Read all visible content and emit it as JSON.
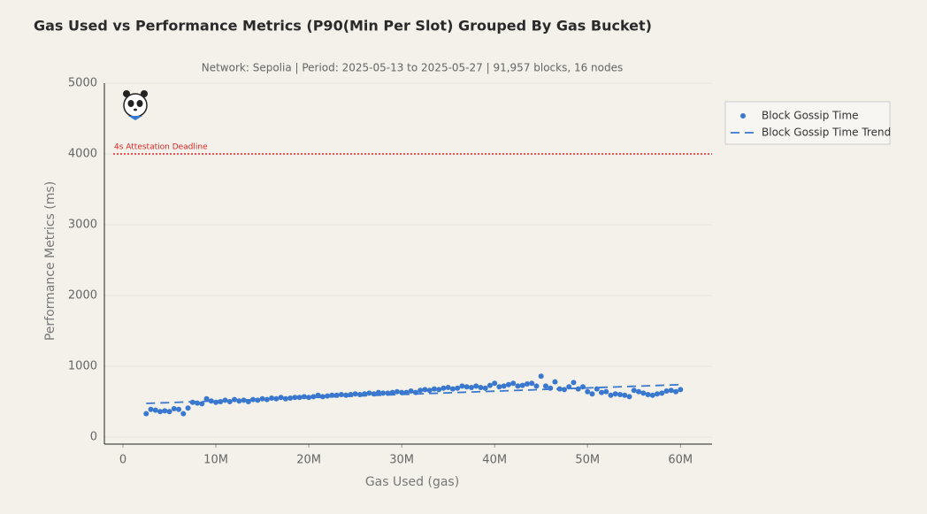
{
  "chart_data": {
    "type": "scatter",
    "title": "Gas Used vs Performance Metrics (P90(Min Per Slot) Grouped By Gas Bucket)",
    "subtitle": "Network: Sepolia | Period: 2025-05-13 to 2025-05-27 | 91,957 blocks, 16 nodes",
    "xlabel": "Gas Used (gas)",
    "ylabel": "Performance Metrics (ms)",
    "xlim": [
      -2000000,
      63400000
    ],
    "ylim": [
      -100,
      5000
    ],
    "xticks": [
      0,
      {
        "value": 10000000,
        "label": "10M"
      },
      {
        "value": 20000000,
        "label": "20M"
      },
      {
        "value": 30000000,
        "label": "30M"
      },
      {
        "value": 40000000,
        "label": "40M"
      },
      {
        "value": 50000000,
        "label": "50M"
      },
      {
        "value": 60000000,
        "label": "60M"
      }
    ],
    "yticks": [
      0,
      1000,
      2000,
      3000,
      4000,
      5000
    ],
    "grid": true,
    "legend": "outside right",
    "reference_lines": [
      {
        "value": 4000,
        "label": "4s Attestation Deadline",
        "color": "#e02424"
      }
    ],
    "series": [
      {
        "name": "Block Gossip Time",
        "type": "scatter",
        "color": "#3a78d0",
        "x": [
          2500000,
          3000000,
          3500000,
          4000000,
          4500000,
          5000000,
          5500000,
          6000000,
          6500000,
          7000000,
          7500000,
          8000000,
          8500000,
          9000000,
          9500000,
          10000000,
          10500000,
          11000000,
          11500000,
          12000000,
          12500000,
          13000000,
          13500000,
          14000000,
          14500000,
          15000000,
          15500000,
          16000000,
          16500000,
          17000000,
          17500000,
          18000000,
          18500000,
          19000000,
          19500000,
          20000000,
          20500000,
          21000000,
          21500000,
          22000000,
          22500000,
          23000000,
          23500000,
          24000000,
          24500000,
          25000000,
          25500000,
          26000000,
          26500000,
          27000000,
          27500000,
          28000000,
          28500000,
          29000000,
          29500000,
          30000000,
          30500000,
          31000000,
          31500000,
          32000000,
          32500000,
          33000000,
          33500000,
          34000000,
          34500000,
          35000000,
          35500000,
          36000000,
          36500000,
          37000000,
          37500000,
          38000000,
          38500000,
          39000000,
          39500000,
          40000000,
          40500000,
          41000000,
          41500000,
          42000000,
          42500000,
          43000000,
          43500000,
          44000000,
          44500000,
          45000000,
          45500000,
          46000000,
          46500000,
          47000000,
          47500000,
          48000000,
          48500000,
          49000000,
          49500000,
          50000000,
          50500000,
          51000000,
          51500000,
          52000000,
          52500000,
          53000000,
          53500000,
          54000000,
          54500000,
          55000000,
          55500000,
          56000000,
          56500000,
          57000000,
          57500000,
          58000000,
          58500000,
          59000000,
          59500000,
          60000000
        ],
        "values": [
          330,
          390,
          380,
          360,
          370,
          360,
          400,
          390,
          330,
          410,
          490,
          480,
          470,
          540,
          510,
          490,
          500,
          520,
          500,
          530,
          510,
          520,
          500,
          530,
          520,
          540,
          530,
          550,
          540,
          560,
          540,
          550,
          560,
          560,
          570,
          560,
          570,
          590,
          570,
          580,
          590,
          590,
          600,
          590,
          600,
          610,
          600,
          610,
          620,
          610,
          630,
          620,
          620,
          630,
          640,
          630,
          630,
          650,
          630,
          660,
          670,
          660,
          680,
          670,
          690,
          700,
          680,
          690,
          720,
          710,
          700,
          720,
          700,
          690,
          730,
          760,
          710,
          720,
          740,
          760,
          720,
          730,
          750,
          760,
          720,
          860,
          720,
          690,
          780,
          680,
          670,
          710,
          770,
          680,
          710,
          640,
          610,
          680,
          630,
          640,
          590,
          610,
          600,
          590,
          570,
          660,
          640,
          620,
          600,
          590,
          610,
          620,
          650,
          660,
          640,
          670
        ]
      },
      {
        "name": "Block Gossip Time Trend",
        "type": "line",
        "color": "#3a78d0",
        "dashed": true,
        "x": [
          2500000,
          60000000
        ],
        "values": [
          475,
          740
        ]
      }
    ]
  }
}
